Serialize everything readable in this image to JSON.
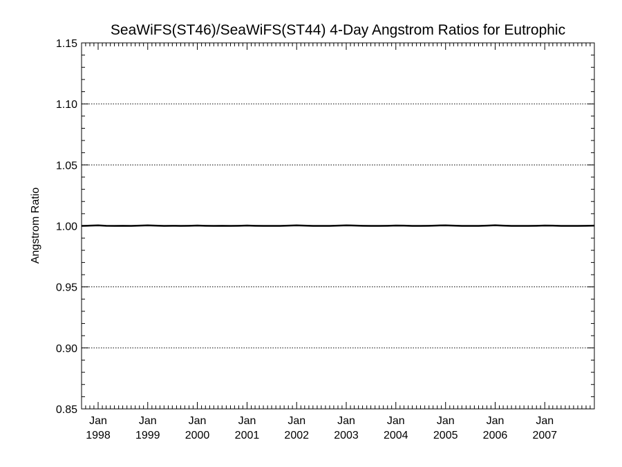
{
  "chart_data": {
    "type": "line",
    "title": "SeaWiFS(ST46)/SeaWiFS(ST44) 4-Day Angstrom Ratios for Eutrophic",
    "ylabel": "Angstrom Ratio",
    "xlabel": "",
    "ylim": [
      0.85,
      1.15
    ],
    "xlim": [
      "1997-09-01",
      "2008-01-01"
    ],
    "y_ticks": [
      "0.85",
      "0.90",
      "0.95",
      "1.00",
      "1.05",
      "1.10",
      "1.15"
    ],
    "y_minor_step": 0.01,
    "x_ticks": [
      {
        "month": "Jan",
        "year": "1998",
        "date": "1998-01-01"
      },
      {
        "month": "Jan",
        "year": "1999",
        "date": "1999-01-01"
      },
      {
        "month": "Jan",
        "year": "2000",
        "date": "2000-01-01"
      },
      {
        "month": "Jan",
        "year": "2001",
        "date": "2001-01-01"
      },
      {
        "month": "Jan",
        "year": "2002",
        "date": "2002-01-01"
      },
      {
        "month": "Jan",
        "year": "2003",
        "date": "2003-01-01"
      },
      {
        "month": "Jan",
        "year": "2004",
        "date": "2004-01-01"
      },
      {
        "month": "Jan",
        "year": "2005",
        "date": "2005-01-01"
      },
      {
        "month": "Jan",
        "year": "2006",
        "date": "2006-01-01"
      },
      {
        "month": "Jan",
        "year": "2007",
        "date": "2007-01-01"
      }
    ],
    "grid": "horizontal-dotted",
    "series": [
      {
        "color": "#000000",
        "x": [
          "1997-09-01",
          "1997-11-01",
          "1998-01-01",
          "1998-03-01",
          "1998-05-01",
          "1998-07-01",
          "1998-09-01",
          "1998-11-01",
          "1999-01-01",
          "1999-03-01",
          "1999-05-01",
          "1999-07-01",
          "1999-09-01",
          "1999-11-01",
          "2000-01-01",
          "2000-03-01",
          "2000-05-01",
          "2000-07-01",
          "2000-09-01",
          "2000-11-01",
          "2001-01-01",
          "2001-03-01",
          "2001-05-01",
          "2001-07-01",
          "2001-09-01",
          "2001-11-01",
          "2002-01-01",
          "2002-03-01",
          "2002-05-01",
          "2002-07-01",
          "2002-09-01",
          "2002-11-01",
          "2003-01-01",
          "2003-03-01",
          "2003-05-01",
          "2003-07-01",
          "2003-09-01",
          "2003-11-01",
          "2004-01-01",
          "2004-03-01",
          "2004-05-01",
          "2004-07-01",
          "2004-09-01",
          "2004-11-01",
          "2005-01-01",
          "2005-03-01",
          "2005-05-01",
          "2005-07-01",
          "2005-09-01",
          "2005-11-01",
          "2006-01-01",
          "2006-03-01",
          "2006-05-01",
          "2006-07-01",
          "2006-09-01",
          "2006-11-01",
          "2007-01-01",
          "2007-03-01",
          "2007-05-01",
          "2007-07-01",
          "2007-09-01",
          "2007-11-01",
          "2008-01-01"
        ],
        "y": [
          1.0,
          1.0002,
          1.0004,
          1.0001,
          1.0,
          1.0001,
          1.0,
          1.0002,
          1.0004,
          1.0002,
          1.0,
          1.0001,
          1.0,
          1.0001,
          1.0003,
          1.0001,
          1.0,
          1.0001,
          1.0,
          1.0001,
          1.0003,
          1.0001,
          1.0,
          1.0,
          1.0,
          1.0002,
          1.0004,
          1.0002,
          1.0,
          1.0,
          1.0,
          1.0002,
          1.0004,
          1.0003,
          1.0001,
          1.0,
          1.0,
          1.0001,
          1.0003,
          1.0002,
          1.0,
          1.0,
          1.0001,
          1.0003,
          1.0004,
          1.0002,
          1.0,
          1.0,
          1.0,
          1.0002,
          1.0005,
          1.0002,
          1.0,
          1.0,
          1.0,
          1.0001,
          1.0003,
          1.0002,
          1.0,
          1.0,
          1.0,
          1.0001,
          1.0002
        ]
      }
    ]
  }
}
